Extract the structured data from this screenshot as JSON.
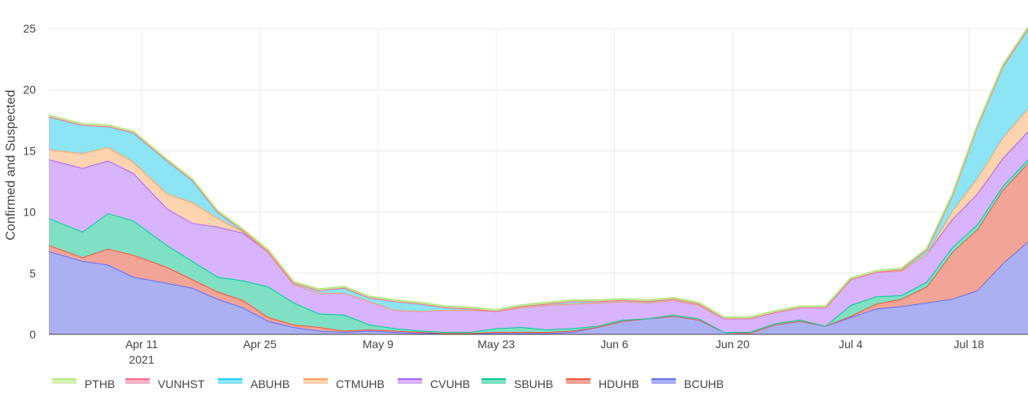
{
  "chart_data": {
    "type": "area",
    "stacked": true,
    "title": "",
    "xlabel": "",
    "ylabel": "Confirmed and Suspected",
    "ylim": [
      0,
      25
    ],
    "x_range": [
      "2021-03-31",
      "2021-07-25"
    ],
    "x_ticks": [
      {
        "date": "2021-04-11",
        "label": "Apr 11",
        "sublabel": "2021"
      },
      {
        "date": "2021-04-25",
        "label": "Apr 25"
      },
      {
        "date": "2021-05-09",
        "label": "May 9"
      },
      {
        "date": "2021-05-23",
        "label": "May 23"
      },
      {
        "date": "2021-06-06",
        "label": "Jun 6"
      },
      {
        "date": "2021-06-20",
        "label": "Jun 20"
      },
      {
        "date": "2021-07-04",
        "label": "Jul 4"
      },
      {
        "date": "2021-07-18",
        "label": "Jul 18"
      }
    ],
    "y_ticks": [
      0,
      5,
      10,
      15,
      20,
      25
    ],
    "grid": true,
    "legend_position": "bottom",
    "x": [
      "2021-03-31",
      "2021-04-04",
      "2021-04-07",
      "2021-04-10",
      "2021-04-14",
      "2021-04-17",
      "2021-04-20",
      "2021-04-23",
      "2021-04-26",
      "2021-04-29",
      "2021-05-02",
      "2021-05-05",
      "2021-05-08",
      "2021-05-11",
      "2021-05-14",
      "2021-05-17",
      "2021-05-20",
      "2021-05-23",
      "2021-05-26",
      "2021-05-29",
      "2021-06-01",
      "2021-06-04",
      "2021-06-07",
      "2021-06-10",
      "2021-06-13",
      "2021-06-16",
      "2021-06-19",
      "2021-06-22",
      "2021-06-25",
      "2021-06-28",
      "2021-07-01",
      "2021-07-04",
      "2021-07-07",
      "2021-07-10",
      "2021-07-13",
      "2021-07-16",
      "2021-07-19",
      "2021-07-22",
      "2021-07-25"
    ],
    "series": [
      {
        "name": "BCUHB",
        "color": "#636efa",
        "fill": "#abb0f3",
        "values": [
          6.8,
          6.0,
          5.7,
          4.7,
          4.2,
          3.8,
          2.9,
          2.2,
          1.1,
          0.6,
          0.3,
          0.2,
          0.3,
          0.2,
          0.1,
          0.1,
          0.1,
          0.1,
          0.1,
          0.1,
          0.2,
          0.6,
          1.1,
          1.3,
          1.5,
          1.2,
          0.2,
          0.1,
          0.8,
          1.1,
          0.7,
          1.4,
          2.1,
          2.3,
          2.6,
          2.9,
          3.6,
          5.8,
          7.6
        ]
      },
      {
        "name": "HDUHB",
        "color": "#ef553b",
        "fill": "#f2a597",
        "values": [
          0.5,
          0.3,
          1.3,
          1.8,
          1.3,
          0.7,
          0.6,
          0.6,
          0.3,
          0.2,
          0.3,
          0.1,
          0.1,
          0.1,
          0.1,
          0.0,
          0.0,
          0.1,
          0.1,
          0.1,
          0.1,
          0.0,
          0.0,
          0.0,
          0.0,
          0.0,
          0.0,
          0.0,
          0.0,
          0.0,
          0.0,
          0.1,
          0.4,
          0.6,
          1.3,
          3.8,
          5.0,
          6.0,
          6.4
        ]
      },
      {
        "name": "SBUHB",
        "color": "#00cc96",
        "fill": "#7fe0c4",
        "values": [
          2.2,
          2.1,
          2.9,
          2.8,
          1.8,
          1.5,
          1.2,
          1.6,
          2.5,
          1.8,
          1.1,
          1.3,
          0.4,
          0.2,
          0.1,
          0.1,
          0.1,
          0.3,
          0.4,
          0.2,
          0.2,
          0.1,
          0.1,
          0.0,
          0.1,
          0.1,
          0.0,
          0.1,
          0.1,
          0.1,
          0.0,
          0.9,
          0.6,
          0.3,
          0.4,
          0.4,
          0.4,
          0.3,
          0.3
        ]
      },
      {
        "name": "CVUHB",
        "color": "#ab63fa",
        "fill": "#d7b4fb",
        "values": [
          4.8,
          5.2,
          4.3,
          3.9,
          3.0,
          3.1,
          4.1,
          3.9,
          2.8,
          1.5,
          1.7,
          1.8,
          1.9,
          1.5,
          1.6,
          1.8,
          1.8,
          1.4,
          1.6,
          2.0,
          2.0,
          1.9,
          1.5,
          1.3,
          1.2,
          1.1,
          1.1,
          1.1,
          0.9,
          1.0,
          1.5,
          2.1,
          2.0,
          2.0,
          2.3,
          2.3,
          2.5,
          2.3,
          2.3
        ]
      },
      {
        "name": "CTMUHB",
        "color": "#ffa15a",
        "fill": "#fdd3b0",
        "values": [
          0.8,
          1.2,
          1.1,
          0.9,
          1.2,
          1.7,
          0.7,
          0.1,
          0.0,
          0.0,
          0.0,
          0.0,
          0.0,
          0.0,
          0.0,
          0.0,
          0.0,
          0.0,
          0.0,
          0.0,
          0.0,
          0.0,
          0.0,
          0.0,
          0.0,
          0.0,
          0.0,
          0.0,
          0.0,
          0.0,
          0.0,
          0.0,
          0.0,
          0.0,
          0.0,
          0.7,
          1.3,
          1.7,
          1.9
        ]
      },
      {
        "name": "ABUHB",
        "color": "#19d3f3",
        "fill": "#8ce4f4",
        "values": [
          2.7,
          2.3,
          1.7,
          2.4,
          2.7,
          1.8,
          0.5,
          0.1,
          0.1,
          0.1,
          0.2,
          0.4,
          0.3,
          0.7,
          0.6,
          0.2,
          0.1,
          0.0,
          0.1,
          0.1,
          0.2,
          0.1,
          0.1,
          0.1,
          0.1,
          0.1,
          0.0,
          0.0,
          0.0,
          0.0,
          0.0,
          0.0,
          0.0,
          0.1,
          0.3,
          1.2,
          4.2,
          5.8,
          6.5
        ]
      },
      {
        "name": "VUNHST",
        "color": "#ff6692",
        "fill": "#f5b4c6",
        "values": [
          0,
          0,
          0,
          0,
          0,
          0,
          0,
          0,
          0,
          0,
          0,
          0,
          0,
          0,
          0,
          0,
          0,
          0,
          0,
          0,
          0,
          0,
          0,
          0,
          0,
          0,
          0,
          0,
          0,
          0,
          0,
          0,
          0,
          0,
          0,
          0,
          0,
          0,
          0
        ]
      },
      {
        "name": "PTHB",
        "color": "#b6e880",
        "fill": "#d6f1b8",
        "values": [
          0.1,
          0.1,
          0.1,
          0.1,
          0.1,
          0.1,
          0.1,
          0.1,
          0.1,
          0.1,
          0.1,
          0.1,
          0.1,
          0.1,
          0.1,
          0.1,
          0.1,
          0.1,
          0.1,
          0.1,
          0.1,
          0.1,
          0.1,
          0.1,
          0.1,
          0.1,
          0.1,
          0.1,
          0.1,
          0.1,
          0.1,
          0.1,
          0.1,
          0.1,
          0.1,
          0.1,
          0.1,
          0.1,
          0.1
        ]
      }
    ],
    "legend_order": [
      "PTHB",
      "VUNHST",
      "ABUHB",
      "CTMUHB",
      "CVUHB",
      "SBUHB",
      "HDUHB",
      "BCUHB"
    ]
  }
}
